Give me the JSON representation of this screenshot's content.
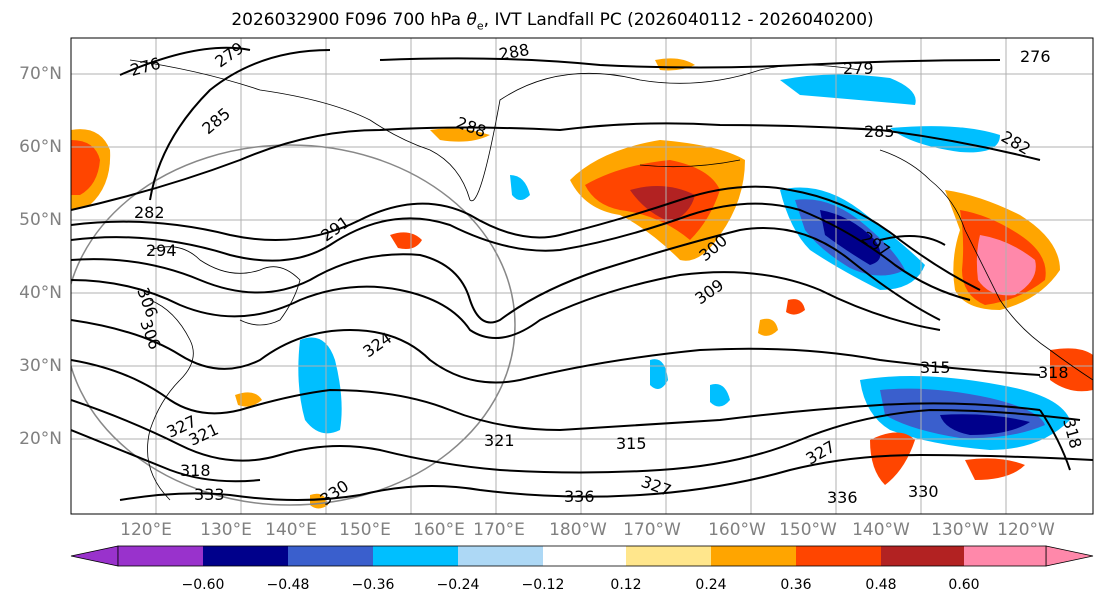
{
  "title": {
    "prefix": "2026032900 F096 700 hPa ",
    "theta_symbol": "θ",
    "theta_sub": "e",
    "suffix": ", IVT Landfall PC (2026040112 - 2026040200)"
  },
  "map": {
    "lat_labels": [
      "70°N",
      "60°N",
      "50°N",
      "40°N",
      "30°N",
      "20°N"
    ],
    "lon_labels": [
      "120°E",
      "130°E",
      "140°E",
      "150°E",
      "160°E",
      "170°E",
      "180°W",
      "170°W",
      "160°W",
      "150°W",
      "140°W",
      "130°W",
      "120°W"
    ],
    "contour_labels": [
      "276",
      "279",
      "285",
      "288",
      "288",
      "279",
      "285",
      "282",
      "276",
      "282",
      "294",
      "291",
      "300",
      "309",
      "297",
      "306",
      "306",
      "324",
      "315",
      "318",
      "327",
      "321",
      "321",
      "315",
      "318",
      "327",
      "336",
      "336",
      "330",
      "330",
      "318",
      "327",
      "333"
    ]
  },
  "colorbar": {
    "colors": [
      "#9932CC",
      "#00008B",
      "#3A5FCD",
      "#00BFFF",
      "#ADD8F5",
      "#FFFFFF",
      "#FFE68C",
      "#FFA500",
      "#FF4500",
      "#B22222",
      "#FF88AA"
    ],
    "tick_labels": [
      "−0.60",
      "−0.48",
      "−0.36",
      "−0.24",
      "−0.12",
      "0.12",
      "0.24",
      "0.36",
      "0.48",
      "0.60"
    ]
  }
}
